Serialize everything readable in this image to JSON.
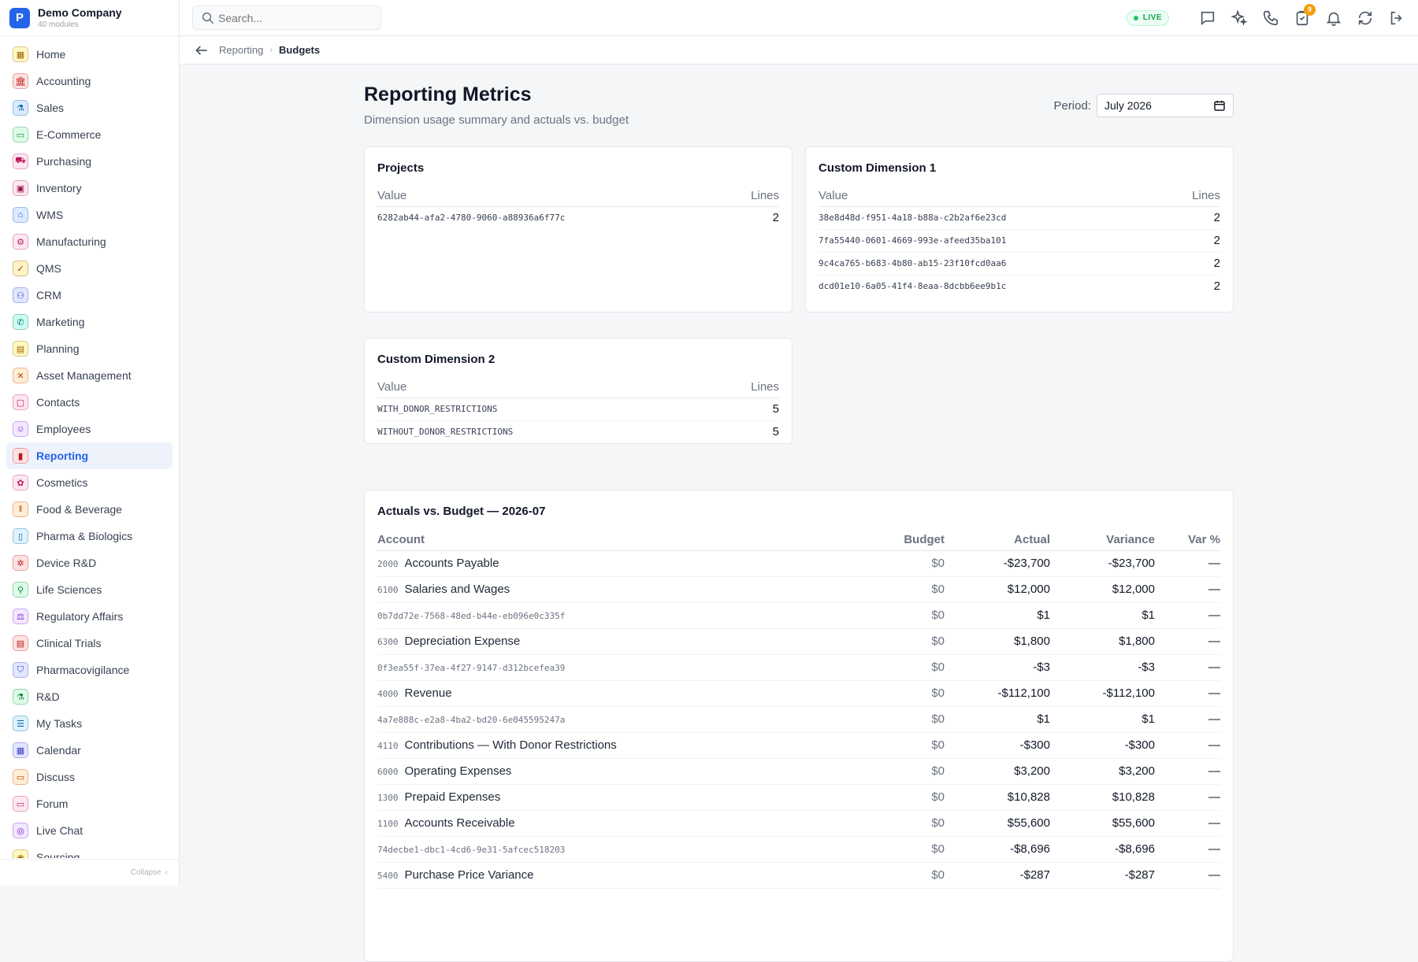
{
  "brand": {
    "initial": "P",
    "name": "Demo Company",
    "subtitle": "40 modules"
  },
  "sidebar": {
    "items": [
      {
        "label": "Home",
        "icon": "grid-icon",
        "color": "#a16207",
        "bg": "#fef9c3"
      },
      {
        "label": "Accounting",
        "icon": "bank-icon",
        "color": "#b91c1c",
        "bg": "#fee2e2"
      },
      {
        "label": "Sales",
        "icon": "flask-icon",
        "color": "#0369a1",
        "bg": "#dbeafe"
      },
      {
        "label": "E-Commerce",
        "icon": "store-icon",
        "color": "#15803d",
        "bg": "#dcfce7"
      },
      {
        "label": "Purchasing",
        "icon": "cart-icon",
        "color": "#be185d",
        "bg": "#fce7f3"
      },
      {
        "label": "Inventory",
        "icon": "box-icon",
        "color": "#9d174d",
        "bg": "#fce7f3"
      },
      {
        "label": "WMS",
        "icon": "warehouse-icon",
        "color": "#1d4ed8",
        "bg": "#dbeafe"
      },
      {
        "label": "Manufacturing",
        "icon": "factory-icon",
        "color": "#be185d",
        "bg": "#fce7f3"
      },
      {
        "label": "QMS",
        "icon": "check-circle-icon",
        "color": "#92400e",
        "bg": "#fef3c7"
      },
      {
        "label": "CRM",
        "icon": "users-icon",
        "color": "#4338ca",
        "bg": "#e0e7ff"
      },
      {
        "label": "Marketing",
        "icon": "megaphone-icon",
        "color": "#0f766e",
        "bg": "#ccfbf1"
      },
      {
        "label": "Planning",
        "icon": "calendar-grid-icon",
        "color": "#a16207",
        "bg": "#fef9c3"
      },
      {
        "label": "Asset Management",
        "icon": "tools-icon",
        "color": "#c2410c",
        "bg": "#ffedd5"
      },
      {
        "label": "Contacts",
        "icon": "contact-card-icon",
        "color": "#be185d",
        "bg": "#fce7f3"
      },
      {
        "label": "Employees",
        "icon": "id-badge-icon",
        "color": "#7e22ce",
        "bg": "#f3e8ff"
      },
      {
        "label": "Reporting",
        "icon": "bar-chart-icon",
        "color": "#b91c1c",
        "bg": "#fee2e2"
      },
      {
        "label": "Cosmetics",
        "icon": "lotus-icon",
        "color": "#be185d",
        "bg": "#fce7f3"
      },
      {
        "label": "Food & Beverage",
        "icon": "utensils-icon",
        "color": "#c2410c",
        "bg": "#ffedd5"
      },
      {
        "label": "Pharma & Biologics",
        "icon": "pill-bottle-icon",
        "color": "#0369a1",
        "bg": "#e0f2fe"
      },
      {
        "label": "Device R&D",
        "icon": "gear-chip-icon",
        "color": "#b91c1c",
        "bg": "#fee2e2"
      },
      {
        "label": "Life Sciences",
        "icon": "microscope-icon",
        "color": "#15803d",
        "bg": "#dcfce7"
      },
      {
        "label": "Regulatory Affairs",
        "icon": "gavel-icon",
        "color": "#7e22ce",
        "bg": "#f3e8ff"
      },
      {
        "label": "Clinical Trials",
        "icon": "clipboard-icon",
        "color": "#b91c1c",
        "bg": "#fee2e2"
      },
      {
        "label": "Pharmacovigilance",
        "icon": "shield-icon",
        "color": "#4338ca",
        "bg": "#e0e7ff"
      },
      {
        "label": "R&D",
        "icon": "beaker-icon",
        "color": "#15803d",
        "bg": "#dcfce7"
      },
      {
        "label": "My Tasks",
        "icon": "checklist-icon",
        "color": "#0369a1",
        "bg": "#e0f2fe"
      },
      {
        "label": "Calendar",
        "icon": "calendar-icon",
        "color": "#4338ca",
        "bg": "#e0e7ff"
      },
      {
        "label": "Discuss",
        "icon": "chat-icon",
        "color": "#c2410c",
        "bg": "#ffedd5"
      },
      {
        "label": "Forum",
        "icon": "forum-icon",
        "color": "#be185d",
        "bg": "#fce7f3"
      },
      {
        "label": "Live Chat",
        "icon": "headset-icon",
        "color": "#7e22ce",
        "bg": "#f3e8ff"
      },
      {
        "label": "Sourcing",
        "icon": "target-icon",
        "color": "#a16207",
        "bg": "#fef9c3"
      }
    ],
    "active_index": 15,
    "collapse_label": "Collapse"
  },
  "topbar": {
    "search_placeholder": "Search...",
    "live_label": "LIVE",
    "notification_badge": "9",
    "icons": [
      "message-icon",
      "sparkles-icon",
      "phone-icon",
      "clipboard-badge-icon",
      "bell-icon",
      "sync-icon",
      "logout-icon"
    ]
  },
  "breadcrumb": {
    "parent": "Reporting",
    "current": "Budgets"
  },
  "page": {
    "title": "Reporting Metrics",
    "subtitle": "Dimension usage summary and actuals vs. budget",
    "period_label": "Period:",
    "period_value": "July 2026"
  },
  "dimensions": [
    {
      "title": "Projects",
      "col_value": "Value",
      "col_lines": "Lines",
      "rows": [
        {
          "value": "6282ab44-afa2-4780-9060-a88936a6f77c",
          "lines": "2"
        }
      ]
    },
    {
      "title": "Custom Dimension 1",
      "col_value": "Value",
      "col_lines": "Lines",
      "rows": [
        {
          "value": "38e8d48d-f951-4a18-b88a-c2b2af6e23cd",
          "lines": "2"
        },
        {
          "value": "7fa55440-0601-4669-993e-afeed35ba101",
          "lines": "2"
        },
        {
          "value": "9c4ca765-b683-4b80-ab15-23f10fcd0aa6",
          "lines": "2"
        },
        {
          "value": "dcd01e10-6a05-41f4-8eaa-8dcbb6ee9b1c",
          "lines": "2"
        }
      ]
    },
    {
      "title": "Custom Dimension 2",
      "col_value": "Value",
      "col_lines": "Lines",
      "rows": [
        {
          "value": "WITH_DONOR_RESTRICTIONS",
          "lines": "5"
        },
        {
          "value": "WITHOUT_DONOR_RESTRICTIONS",
          "lines": "5"
        }
      ]
    }
  ],
  "budget": {
    "title": "Actuals vs. Budget — 2026-07",
    "columns": {
      "account": "Account",
      "budget": "Budget",
      "actual": "Actual",
      "variance": "Variance",
      "var_pct": "Var %"
    },
    "rows": [
      {
        "code": "2000",
        "name": "Accounts Payable",
        "budget": "$0",
        "actual": "-$23,700",
        "variance": "-$23,700",
        "var_pct": "—",
        "sign": "neg"
      },
      {
        "code": "6100",
        "name": "Salaries and Wages",
        "budget": "$0",
        "actual": "$12,000",
        "variance": "$12,000",
        "var_pct": "—",
        "sign": "pos"
      },
      {
        "code": "",
        "name": "0b7dd72e-7568-48ed-b44e-eb096e0c335f",
        "budget": "$0",
        "actual": "$1",
        "variance": "$1",
        "var_pct": "—",
        "sign": "pos"
      },
      {
        "code": "6300",
        "name": "Depreciation Expense",
        "budget": "$0",
        "actual": "$1,800",
        "variance": "$1,800",
        "var_pct": "—",
        "sign": "pos"
      },
      {
        "code": "",
        "name": "0f3ea55f-37ea-4f27-9147-d312bcefea39",
        "budget": "$0",
        "actual": "-$3",
        "variance": "-$3",
        "var_pct": "—",
        "sign": "neg"
      },
      {
        "code": "4000",
        "name": "Revenue",
        "budget": "$0",
        "actual": "-$112,100",
        "variance": "-$112,100",
        "var_pct": "—",
        "sign": "neg"
      },
      {
        "code": "",
        "name": "4a7e888c-e2a8-4ba2-bd20-6e045595247a",
        "budget": "$0",
        "actual": "$1",
        "variance": "$1",
        "var_pct": "—",
        "sign": "pos"
      },
      {
        "code": "4110",
        "name": "Contributions — With Donor Restrictions",
        "budget": "$0",
        "actual": "-$300",
        "variance": "-$300",
        "var_pct": "—",
        "sign": "neg"
      },
      {
        "code": "6000",
        "name": "Operating Expenses",
        "budget": "$0",
        "actual": "$3,200",
        "variance": "$3,200",
        "var_pct": "—",
        "sign": "pos"
      },
      {
        "code": "1300",
        "name": "Prepaid Expenses",
        "budget": "$0",
        "actual": "$10,828",
        "variance": "$10,828",
        "var_pct": "—",
        "sign": "pos"
      },
      {
        "code": "1100",
        "name": "Accounts Receivable",
        "budget": "$0",
        "actual": "$55,600",
        "variance": "$55,600",
        "var_pct": "—",
        "sign": "pos"
      },
      {
        "code": "",
        "name": "74decbe1-dbc1-4cd6-9e31-5afcec518203",
        "budget": "$0",
        "actual": "-$8,696",
        "variance": "-$8,696",
        "var_pct": "—",
        "sign": "neg"
      },
      {
        "code": "5400",
        "name": "Purchase Price Variance",
        "budget": "$0",
        "actual": "-$287",
        "variance": "-$287",
        "var_pct": "—",
        "sign": "neg"
      }
    ]
  }
}
